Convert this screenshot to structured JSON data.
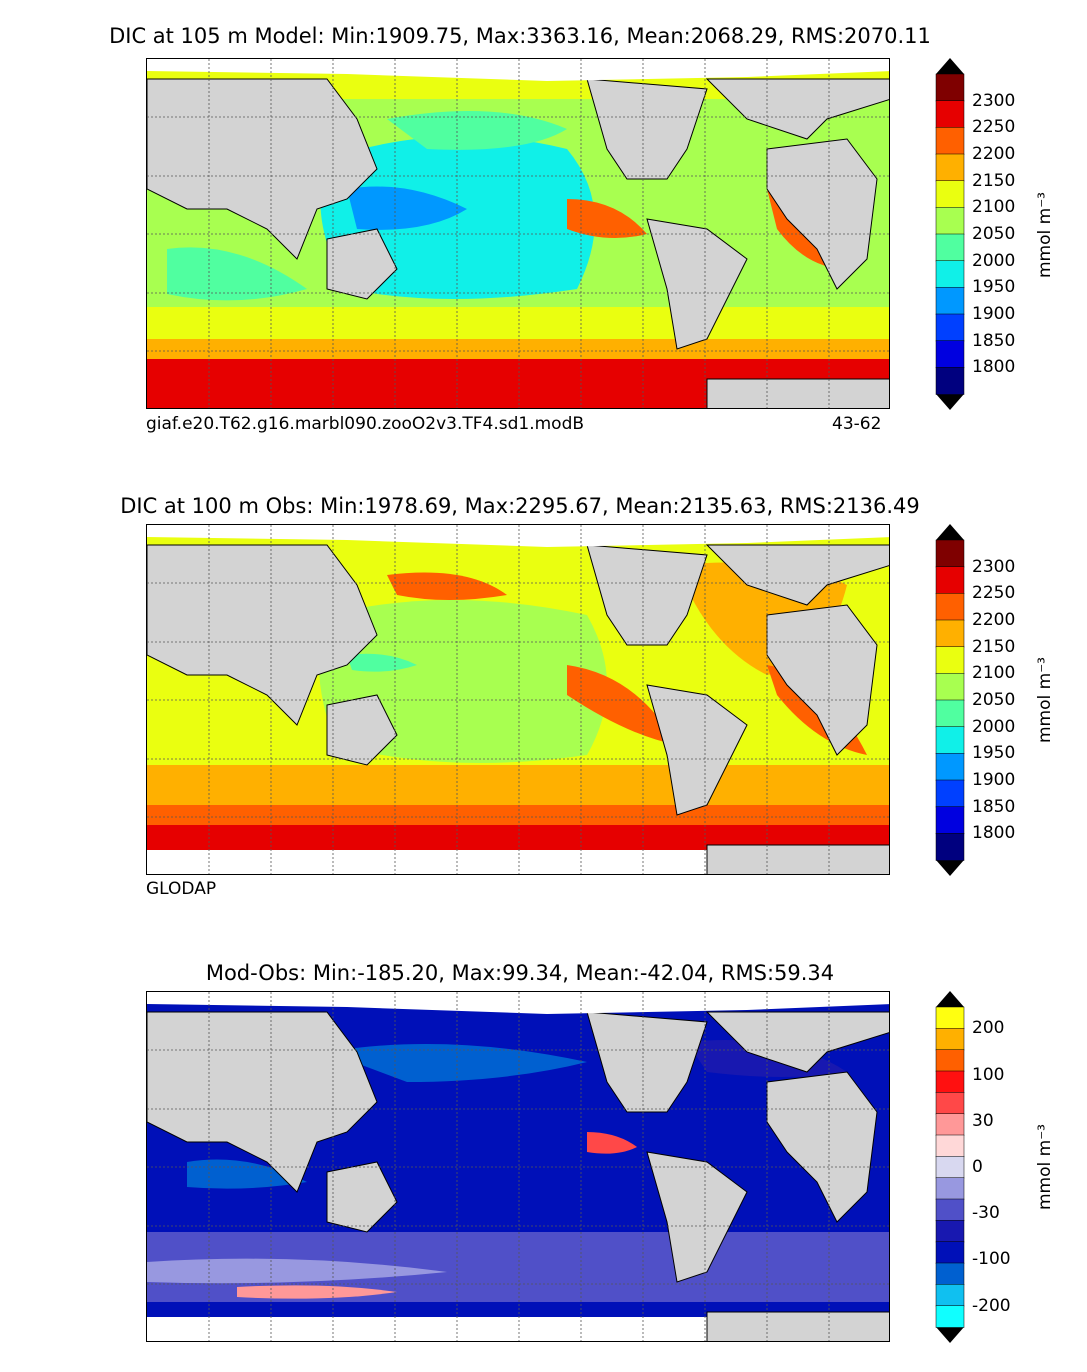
{
  "panels": [
    {
      "id": "model",
      "title": "DIC at 105 m Model: Min:1909.75, Max:3363.16, Mean:2068.29, RMS:2070.11",
      "caption_left": "giaf.e20.T62.g16.marbl090.zooO2v3.TF4.sd1.modB",
      "caption_right": "43-62",
      "colorbar": {
        "ticks": [
          "2300",
          "2250",
          "2200",
          "2150",
          "2100",
          "2050",
          "2000",
          "1950",
          "1900",
          "1850",
          "1800"
        ],
        "unit": "mmol m⁻³",
        "colors": [
          "#7f0000",
          "#e60000",
          "#ff6000",
          "#ffb000",
          "#eaff10",
          "#a8ff50",
          "#50ffa0",
          "#10f0e8",
          "#0098ff",
          "#0040ff",
          "#0000e0",
          "#00007f"
        ]
      }
    },
    {
      "id": "obs",
      "title": "DIC at 100 m Obs: Min:1978.69, Max:2295.67, Mean:2135.63, RMS:2136.49",
      "caption_left": "GLODAP",
      "caption_right": "",
      "colorbar": {
        "ticks": [
          "2300",
          "2250",
          "2200",
          "2150",
          "2100",
          "2050",
          "2000",
          "1950",
          "1900",
          "1850",
          "1800"
        ],
        "unit": "mmol m⁻³",
        "colors": [
          "#7f0000",
          "#e60000",
          "#ff6000",
          "#ffb000",
          "#eaff10",
          "#a8ff50",
          "#50ffa0",
          "#10f0e8",
          "#0098ff",
          "#0040ff",
          "#0000e0",
          "#00007f"
        ]
      }
    },
    {
      "id": "diff",
      "title": "Mod-Obs: Min:-185.20, Max:99.34, Mean:-42.04, RMS:59.34",
      "caption_left": "",
      "caption_right": "",
      "colorbar": {
        "ticks": [
          "200",
          "100",
          "30",
          "0",
          "-30",
          "-100",
          "-200"
        ],
        "unit": "mmol m⁻³",
        "colors": [
          "#ffff10",
          "#ffb000",
          "#ff6000",
          "#ff1010",
          "#ff4848",
          "#ff9898",
          "#ffd8d8",
          "#d8d8f0",
          "#9898e0",
          "#5050c8",
          "#1818b0",
          "#0010b8",
          "#0060d0",
          "#10c0f0",
          "#10ffff"
        ]
      }
    }
  ],
  "icons": {
    "land": "#d3d3d3",
    "ice": "#ffffff",
    "grid": "#555555"
  }
}
